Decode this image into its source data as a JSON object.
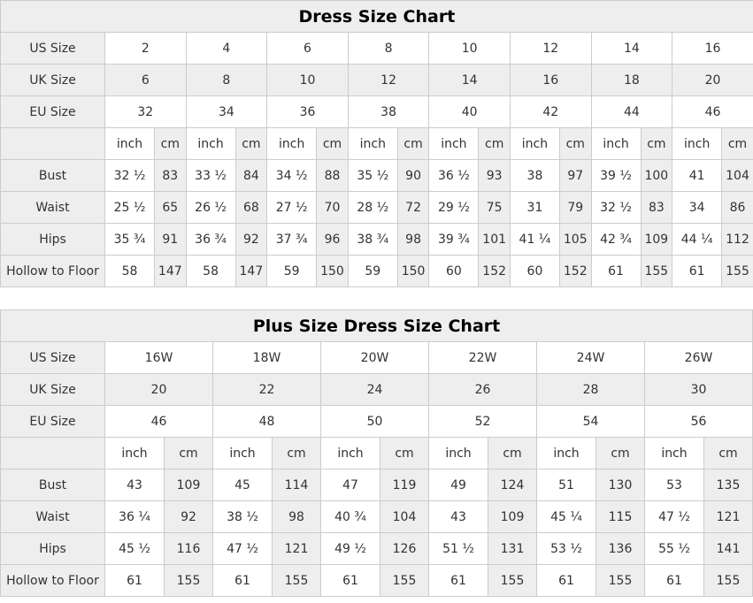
{
  "colors": {
    "shaded_cell": "#eeeeee",
    "border": "#cccccc",
    "text": "#333333",
    "title_text": "#000000"
  },
  "chart_data": [
    {
      "type": "table",
      "title": "Dress Size Chart",
      "columns": 8,
      "unit_labels": [
        "inch",
        "cm"
      ],
      "size_rows": [
        {
          "label": "US Size",
          "shaded": false,
          "values": [
            "2",
            "4",
            "6",
            "8",
            "10",
            "12",
            "14",
            "16"
          ]
        },
        {
          "label": "UK Size",
          "shaded": true,
          "values": [
            "6",
            "8",
            "10",
            "12",
            "14",
            "16",
            "18",
            "20"
          ]
        },
        {
          "label": "EU Size",
          "shaded": false,
          "values": [
            "32",
            "34",
            "36",
            "38",
            "40",
            "42",
            "44",
            "46"
          ]
        }
      ],
      "measure_rows": [
        {
          "label": "Bust",
          "inch": [
            "32 ½",
            "33 ½",
            "34 ½",
            "35 ½",
            "36 ½",
            "38",
            "39 ½",
            "41"
          ],
          "cm": [
            "83",
            "84",
            "88",
            "90",
            "93",
            "97",
            "100",
            "104"
          ]
        },
        {
          "label": "Waist",
          "inch": [
            "25 ½",
            "26 ½",
            "27 ½",
            "28 ½",
            "29 ½",
            "31",
            "32 ½",
            "34"
          ],
          "cm": [
            "65",
            "68",
            "70",
            "72",
            "75",
            "79",
            "83",
            "86"
          ]
        },
        {
          "label": "Hips",
          "inch": [
            "35 ¾",
            "36 ¾",
            "37 ¾",
            "38 ¾",
            "39 ¾",
            "41 ¼",
            "42 ¾",
            "44 ¼"
          ],
          "cm": [
            "91",
            "92",
            "96",
            "98",
            "101",
            "105",
            "109",
            "112"
          ]
        },
        {
          "label": "Hollow to Floor",
          "inch": [
            "58",
            "58",
            "59",
            "59",
            "60",
            "60",
            "61",
            "61"
          ],
          "cm": [
            "147",
            "147",
            "150",
            "150",
            "152",
            "152",
            "155",
            "155"
          ]
        }
      ]
    },
    {
      "type": "table",
      "title": "Plus Size Dress Size Chart",
      "columns": 6,
      "unit_labels": [
        "inch",
        "cm"
      ],
      "size_rows": [
        {
          "label": "US Size",
          "shaded": false,
          "values": [
            "16W",
            "18W",
            "20W",
            "22W",
            "24W",
            "26W"
          ]
        },
        {
          "label": "UK Size",
          "shaded": true,
          "values": [
            "20",
            "22",
            "24",
            "26",
            "28",
            "30"
          ]
        },
        {
          "label": "EU Size",
          "shaded": false,
          "values": [
            "46",
            "48",
            "50",
            "52",
            "54",
            "56"
          ]
        }
      ],
      "measure_rows": [
        {
          "label": "Bust",
          "inch": [
            "43",
            "45",
            "47",
            "49",
            "51",
            "53"
          ],
          "cm": [
            "109",
            "114",
            "119",
            "124",
            "130",
            "135"
          ]
        },
        {
          "label": "Waist",
          "inch": [
            "36 ¼",
            "38 ½",
            "40 ¾",
            "43",
            "45 ¼",
            "47 ½"
          ],
          "cm": [
            "92",
            "98",
            "104",
            "109",
            "115",
            "121"
          ]
        },
        {
          "label": "Hips",
          "inch": [
            "45 ½",
            "47 ½",
            "49 ½",
            "51 ½",
            "53 ½",
            "55 ½"
          ],
          "cm": [
            "116",
            "121",
            "126",
            "131",
            "136",
            "141"
          ]
        },
        {
          "label": "Hollow to Floor",
          "inch": [
            "61",
            "61",
            "61",
            "61",
            "61",
            "61"
          ],
          "cm": [
            "155",
            "155",
            "155",
            "155",
            "155",
            "155"
          ]
        }
      ]
    }
  ]
}
